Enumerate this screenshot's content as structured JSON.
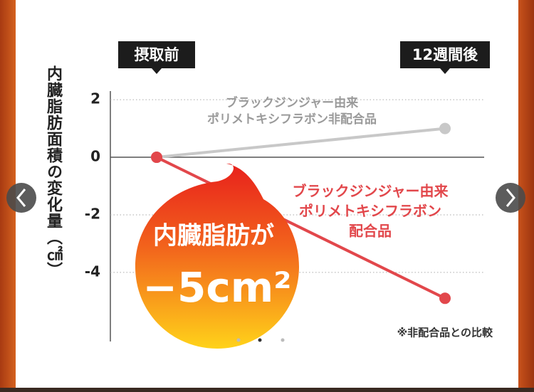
{
  "chart_data": {
    "type": "line",
    "y_axis_label": "内臓脂肪面積の変化量（㎠）",
    "categories": [
      "摂取前",
      "12週間後"
    ],
    "series": [
      {
        "name": [
          "ブラックジンジャー由来",
          "ポリメトキシフラボン非配合品"
        ],
        "color": "#c8c8c8",
        "values": [
          0,
          1.0
        ]
      },
      {
        "name": [
          "ブラックジンジャー由来",
          "ポリメトキシフラボン",
          "配合品"
        ],
        "color": "#e2474b",
        "values": [
          0,
          -4.9
        ]
      }
    ],
    "ylim": [
      -6.4,
      2.3
    ],
    "yticks": [
      2,
      0,
      -2,
      -4
    ],
    "grid": true,
    "note": "※非配合品との比較"
  },
  "badge": {
    "line1": "内臓脂肪が",
    "line2": "−5cm²"
  }
}
